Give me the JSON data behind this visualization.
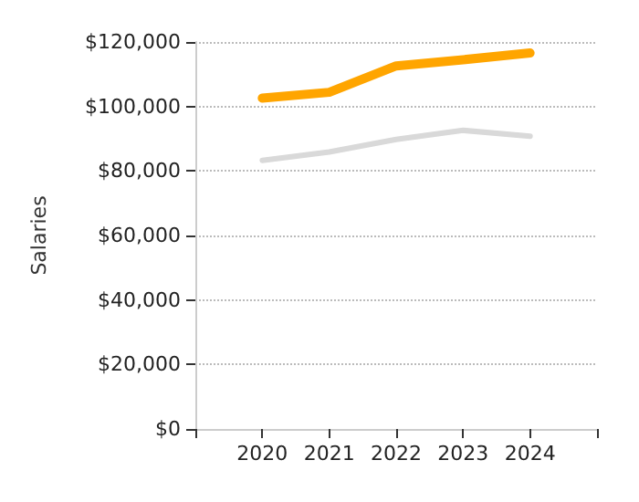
{
  "chart_data": {
    "type": "line",
    "ylabel": "Salaries",
    "x": [
      2020,
      2021,
      2022,
      2023,
      2024
    ],
    "xlim": [
      2019,
      2025
    ],
    "xticks": [
      {
        "value": 2019,
        "label": null
      },
      2020,
      2021,
      2022,
      2023,
      2024,
      {
        "value": 2025,
        "label": null
      }
    ],
    "ylim": [
      0,
      120000
    ],
    "yticks": [
      {
        "value": 0,
        "label": "$0"
      },
      {
        "value": 20000,
        "label": "$20,000"
      },
      {
        "value": 40000,
        "label": "$40,000"
      },
      {
        "value": 60000,
        "label": "$60,000"
      },
      {
        "value": 80000,
        "label": "$80,000"
      },
      {
        "value": 100000,
        "label": "$100,000"
      },
      {
        "value": 120000,
        "label": "$120,000"
      }
    ],
    "series": [
      {
        "color": "#ffa500",
        "values": [
          102600,
          104400,
          112600,
          114500,
          116600
        ]
      },
      {
        "color": "#d9d9d9",
        "values": [
          83300,
          85900,
          89800,
          92600,
          90800
        ]
      }
    ],
    "grid": "y",
    "marker": "none",
    "line_style": "solid"
  }
}
